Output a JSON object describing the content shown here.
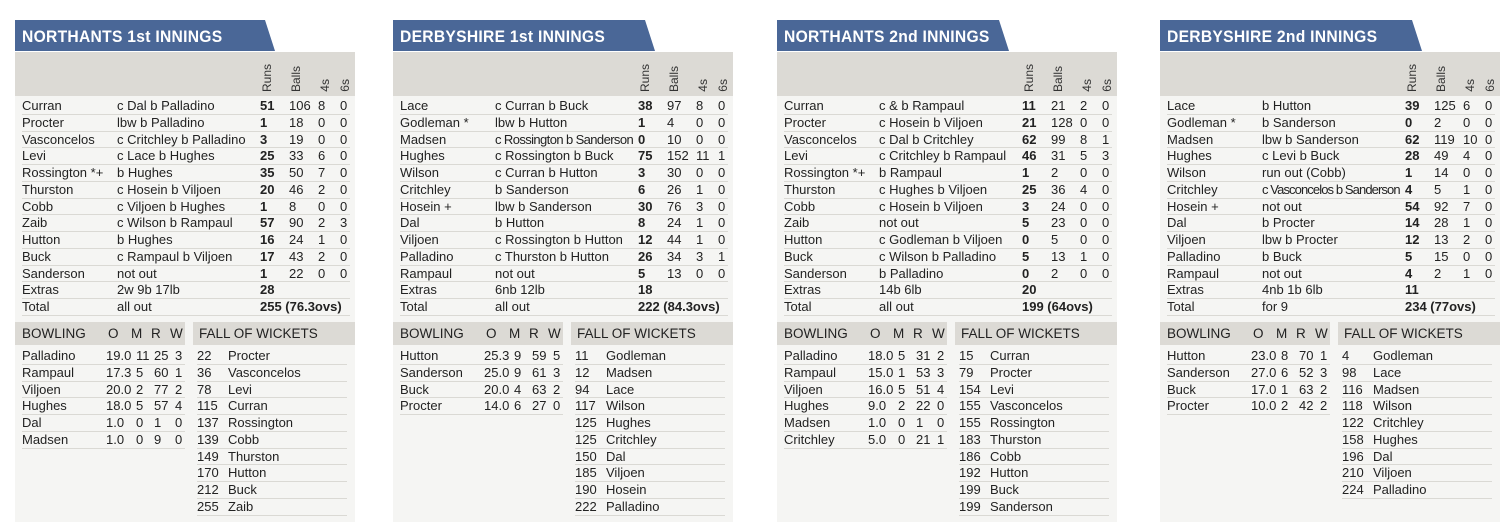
{
  "innings": [
    {
      "title": "NORTHANTS 1st INNINGS",
      "columns": [
        "Runs",
        "Balls",
        "4s",
        "6s"
      ],
      "batting": [
        [
          "Curran",
          "c Dal b Palladino",
          "51",
          "106",
          "8",
          "0"
        ],
        [
          "Procter",
          "lbw b Palladino",
          "1",
          "18",
          "0",
          "0"
        ],
        [
          "Vasconcelos",
          "c Critchley b Palladino",
          "3",
          "19",
          "0",
          "0"
        ],
        [
          "Levi",
          "c Lace b Hughes",
          "25",
          "33",
          "6",
          "0"
        ],
        [
          "Rossington *+",
          "b Hughes",
          "35",
          "50",
          "7",
          "0"
        ],
        [
          "Thurston",
          "c Hosein b Viljoen",
          "20",
          "46",
          "2",
          "0"
        ],
        [
          "Cobb",
          "c Viljoen b Hughes",
          "1",
          "8",
          "0",
          "0"
        ],
        [
          "Zaib",
          "c Wilson b Rampaul",
          "57",
          "90",
          "2",
          "3"
        ],
        [
          "Hutton",
          "b Hughes",
          "16",
          "24",
          "1",
          "0"
        ],
        [
          "Buck",
          "c Rampaul b Viljoen",
          "17",
          "43",
          "2",
          "0"
        ],
        [
          "Sanderson",
          "not out",
          "1",
          "22",
          "0",
          "0"
        ]
      ],
      "extras": [
        "Extras",
        "2w 9b 17lb",
        "28"
      ],
      "total": [
        "Total",
        "all out",
        "255 (76.3ovs)"
      ],
      "bowling_header": [
        "BOWLING",
        "O",
        "M",
        "R",
        "W"
      ],
      "bowling": [
        [
          "Palladino",
          "19.0",
          "11",
          "25",
          "3"
        ],
        [
          "Rampaul",
          "17.3",
          "5",
          "60",
          "1"
        ],
        [
          "Viljoen",
          "20.0",
          "2",
          "77",
          "2"
        ],
        [
          "Hughes",
          "18.0",
          "5",
          "57",
          "4"
        ],
        [
          "Dal",
          "1.0",
          "0",
          "1",
          "0"
        ],
        [
          "Madsen",
          "1.0",
          "0",
          "9",
          "0"
        ]
      ],
      "fow_header": "FALL OF WICKETS",
      "fow": [
        [
          "22",
          "Procter"
        ],
        [
          "36",
          "Vasconcelos"
        ],
        [
          "78",
          "Levi"
        ],
        [
          "115",
          "Curran"
        ],
        [
          "137",
          "Rossington"
        ],
        [
          "139",
          "Cobb"
        ],
        [
          "149",
          "Thurston"
        ],
        [
          "170",
          "Hutton"
        ],
        [
          "212",
          "Buck"
        ],
        [
          "255",
          "Zaib"
        ]
      ]
    },
    {
      "title": "DERBYSHIRE 1st INNINGS",
      "columns": [
        "Runs",
        "Balls",
        "4s",
        "6s"
      ],
      "batting": [
        [
          "Lace",
          "c Curran b Buck",
          "38",
          "97",
          "8",
          "0"
        ],
        [
          "Godleman *",
          "lbw b Hutton",
          "1",
          "4",
          "0",
          "0"
        ],
        [
          "Madsen",
          "c Rossington b Sanderson",
          "0",
          "10",
          "0",
          "0"
        ],
        [
          "Hughes",
          "c Rossington b Buck",
          "75",
          "152",
          "11",
          "1"
        ],
        [
          "Wilson",
          "c Curran b Hutton",
          "3",
          "30",
          "0",
          "0"
        ],
        [
          "Critchley",
          "b Sanderson",
          "6",
          "26",
          "1",
          "0"
        ],
        [
          "Hosein +",
          "lbw b Sanderson",
          "30",
          "76",
          "3",
          "0"
        ],
        [
          "Dal",
          "b Hutton",
          "8",
          "24",
          "1",
          "0"
        ],
        [
          "Viljoen",
          "c Rossington b Hutton",
          "12",
          "44",
          "1",
          "0"
        ],
        [
          "Palladino",
          "c Thurston b Hutton",
          "26",
          "34",
          "3",
          "1"
        ],
        [
          "Rampaul",
          "not out",
          "5",
          "13",
          "0",
          "0"
        ]
      ],
      "extras": [
        "Extras",
        "6nb 12lb",
        "18"
      ],
      "total": [
        "Total",
        "all out",
        "222 (84.3ovs)"
      ],
      "bowling_header": [
        "BOWLING",
        "O",
        "M",
        "R",
        "W"
      ],
      "bowling": [
        [
          "Hutton",
          "25.3",
          "9",
          "59",
          "5"
        ],
        [
          "Sanderson",
          "25.0",
          "9",
          "61",
          "3"
        ],
        [
          "Buck",
          "20.0",
          "4",
          "63",
          "2"
        ],
        [
          "Procter",
          "14.0",
          "6",
          "27",
          "0"
        ]
      ],
      "fow_header": "FALL OF WICKETS",
      "fow": [
        [
          "11",
          "Godleman"
        ],
        [
          "12",
          "Madsen"
        ],
        [
          "94",
          "Lace"
        ],
        [
          "117",
          "Wilson"
        ],
        [
          "125",
          "Hughes"
        ],
        [
          "125",
          "Critchley"
        ],
        [
          "150",
          "Dal"
        ],
        [
          "185",
          "Viljoen"
        ],
        [
          "190",
          "Hosein"
        ],
        [
          "222",
          "Palladino"
        ]
      ]
    },
    {
      "title": "NORTHANTS 2nd INNINGS",
      "columns": [
        "Runs",
        "Balls",
        "4s",
        "6s"
      ],
      "batting": [
        [
          "Curran",
          "c & b Rampaul",
          "11",
          "21",
          "2",
          "0"
        ],
        [
          "Procter",
          "c Hosein b Viljoen",
          "21",
          "128",
          "0",
          "0"
        ],
        [
          "Vasconcelos",
          "c Dal b Critchley",
          "62",
          "99",
          "8",
          "1"
        ],
        [
          "Levi",
          "c Critchley b Rampaul",
          "46",
          "31",
          "5",
          "3"
        ],
        [
          "Rossington *+",
          "b Rampaul",
          "1",
          "2",
          "0",
          "0"
        ],
        [
          "Thurston",
          "c Hughes b Viljoen",
          "25",
          "36",
          "4",
          "0"
        ],
        [
          "Cobb",
          "c Hosein b Viljoen",
          "3",
          "24",
          "0",
          "0"
        ],
        [
          "Zaib",
          "not out",
          "5",
          "23",
          "0",
          "0"
        ],
        [
          "Hutton",
          "c Godleman b Viljoen",
          "0",
          "5",
          "0",
          "0"
        ],
        [
          "Buck",
          "c Wilson b Palladino",
          "5",
          "13",
          "1",
          "0"
        ],
        [
          "Sanderson",
          "b Palladino",
          "0",
          "2",
          "0",
          "0"
        ]
      ],
      "extras": [
        "Extras",
        "14b 6lb",
        "20"
      ],
      "total": [
        "Total",
        "all out",
        "199 (64ovs)"
      ],
      "bowling_header": [
        "BOWLING",
        "O",
        "M",
        "R",
        "W"
      ],
      "bowling": [
        [
          "Palladino",
          "18.0",
          "5",
          "31",
          "2"
        ],
        [
          "Rampaul",
          "15.0",
          "1",
          "53",
          "3"
        ],
        [
          "Viljoen",
          "16.0",
          "5",
          "51",
          "4"
        ],
        [
          "Hughes",
          "9.0",
          "2",
          "22",
          "0"
        ],
        [
          "Madsen",
          "1.0",
          "0",
          "1",
          "0"
        ],
        [
          "Critchley",
          "5.0",
          "0",
          "21",
          "1"
        ]
      ],
      "fow_header": "FALL OF WICKETS",
      "fow": [
        [
          "15",
          "Curran"
        ],
        [
          "79",
          "Procter"
        ],
        [
          "154",
          "Levi"
        ],
        [
          "155",
          "Vasconcelos"
        ],
        [
          "155",
          "Rossington"
        ],
        [
          "183",
          "Thurston"
        ],
        [
          "186",
          "Cobb"
        ],
        [
          "192",
          "Hutton"
        ],
        [
          "199",
          "Buck"
        ],
        [
          "199",
          "Sanderson"
        ]
      ]
    },
    {
      "title": "DERBYSHIRE 2nd INNINGS",
      "columns": [
        "Runs",
        "Balls",
        "4s",
        "6s"
      ],
      "batting": [
        [
          "Lace",
          "b Hutton",
          "39",
          "125",
          "6",
          "0"
        ],
        [
          "Godleman *",
          "b Sanderson",
          "0",
          "2",
          "0",
          "0"
        ],
        [
          "Madsen",
          "lbw b Sanderson",
          "62",
          "119",
          "10",
          "0"
        ],
        [
          "Hughes",
          "c Levi b Buck",
          "28",
          "49",
          "4",
          "0"
        ],
        [
          "Wilson",
          "run out (Cobb)",
          "1",
          "14",
          "0",
          "0"
        ],
        [
          "Critchley",
          "c Vasconcelos b Sanderson",
          "4",
          "5",
          "1",
          "0"
        ],
        [
          "Hosein +",
          "not out",
          "54",
          "92",
          "7",
          "0"
        ],
        [
          "Dal",
          "b Procter",
          "14",
          "28",
          "1",
          "0"
        ],
        [
          "Viljoen",
          "lbw b Procter",
          "12",
          "13",
          "2",
          "0"
        ],
        [
          "Palladino",
          "b Buck",
          "5",
          "15",
          "0",
          "0"
        ],
        [
          "Rampaul",
          "not out",
          "4",
          "2",
          "1",
          "0"
        ]
      ],
      "extras": [
        "Extras",
        "4nb 1b 6lb",
        "11"
      ],
      "total": [
        "Total",
        "for 9",
        "234 (77ovs)"
      ],
      "bowling_header": [
        "BOWLING",
        "O",
        "M",
        "R",
        "W"
      ],
      "bowling": [
        [
          "Hutton",
          "23.0",
          "8",
          "70",
          "1"
        ],
        [
          "Sanderson",
          "27.0",
          "6",
          "52",
          "3"
        ],
        [
          "Buck",
          "17.0",
          "1",
          "63",
          "2"
        ],
        [
          "Procter",
          "10.0",
          "2",
          "42",
          "2"
        ]
      ],
      "fow_header": "FALL OF WICKETS",
      "fow": [
        [
          "4",
          "Godleman"
        ],
        [
          "98",
          "Lace"
        ],
        [
          "116",
          "Madsen"
        ],
        [
          "118",
          "Wilson"
        ],
        [
          "122",
          "Critchley"
        ],
        [
          "158",
          "Hughes"
        ],
        [
          "196",
          "Dal"
        ],
        [
          "210",
          "Viljoen"
        ],
        [
          "224",
          "Palladino"
        ]
      ]
    }
  ],
  "colors": {
    "title_bg": "#4a6797",
    "header_bg": "#dcdad5",
    "panel_bg": "#f5f5f3"
  }
}
